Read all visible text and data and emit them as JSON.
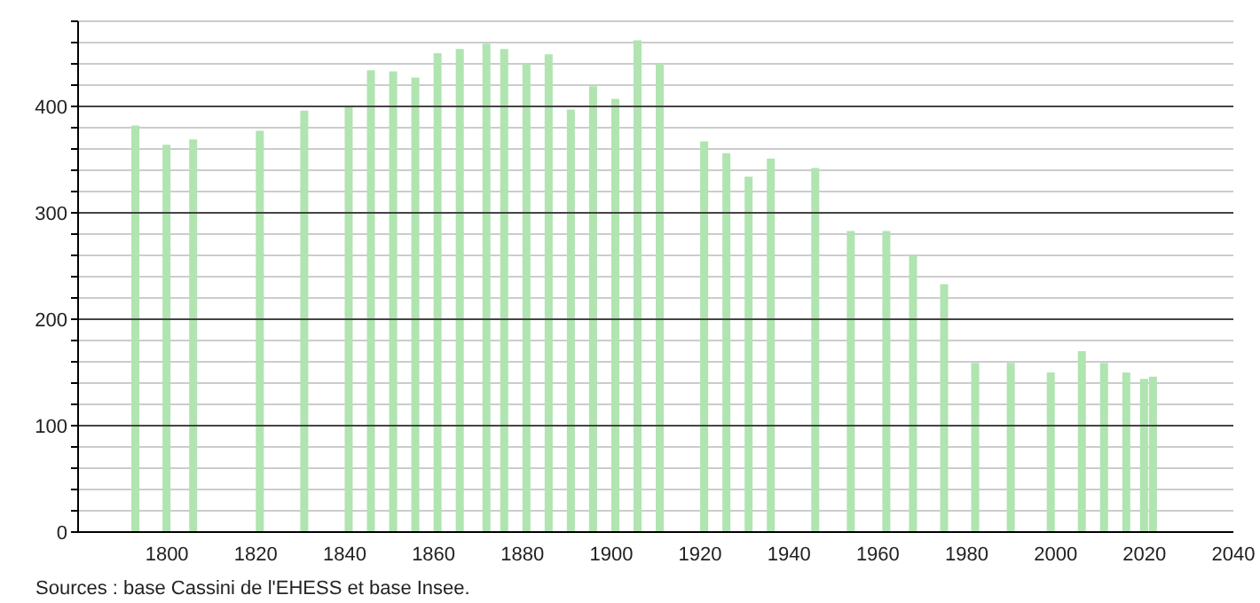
{
  "chart_data": {
    "type": "bar",
    "x": [
      1793,
      1800,
      1806,
      1821,
      1831,
      1841,
      1846,
      1851,
      1856,
      1861,
      1866,
      1872,
      1876,
      1881,
      1886,
      1891,
      1896,
      1901,
      1906,
      1911,
      1921,
      1926,
      1931,
      1936,
      1946,
      1954,
      1962,
      1968,
      1975,
      1982,
      1990,
      1999,
      2006,
      2011,
      2016,
      2020,
      2022
    ],
    "values": [
      382,
      364,
      369,
      377,
      396,
      400,
      434,
      433,
      427,
      450,
      454,
      459,
      454,
      440,
      449,
      397,
      419,
      407,
      462,
      440,
      367,
      356,
      334,
      351,
      342,
      283,
      283,
      260,
      233,
      159,
      159,
      150,
      170,
      159,
      150,
      144,
      146
    ],
    "color": "#b0e4b0",
    "xlim": [
      1780,
      2040
    ],
    "xticks": [
      1800,
      1820,
      1840,
      1860,
      1880,
      1900,
      1920,
      1940,
      1960,
      1980,
      2000,
      2020,
      2040
    ],
    "ylim": [
      0,
      480
    ],
    "yticks": [
      0,
      {
        "value": 20,
        "label": null
      },
      {
        "value": 40,
        "label": null
      },
      {
        "value": 60,
        "label": null
      },
      {
        "value": 80,
        "label": null
      },
      100,
      {
        "value": 120,
        "label": null
      },
      {
        "value": 140,
        "label": null
      },
      {
        "value": 160,
        "label": null
      },
      {
        "value": 180,
        "label": null
      },
      200,
      {
        "value": 220,
        "label": null
      },
      {
        "value": 240,
        "label": null
      },
      {
        "value": 260,
        "label": null
      },
      {
        "value": 280,
        "label": null
      },
      300,
      {
        "value": 320,
        "label": null
      },
      {
        "value": 340,
        "label": null
      },
      {
        "value": 360,
        "label": null
      },
      {
        "value": 380,
        "label": null
      },
      400,
      {
        "value": 420,
        "label": null
      },
      {
        "value": 440,
        "label": null
      },
      {
        "value": 460,
        "label": null
      },
      {
        "value": 480,
        "label": null
      }
    ],
    "grid": true,
    "annotations": [
      "Sources : base Cassini de l'EHESS et base Insee."
    ]
  }
}
